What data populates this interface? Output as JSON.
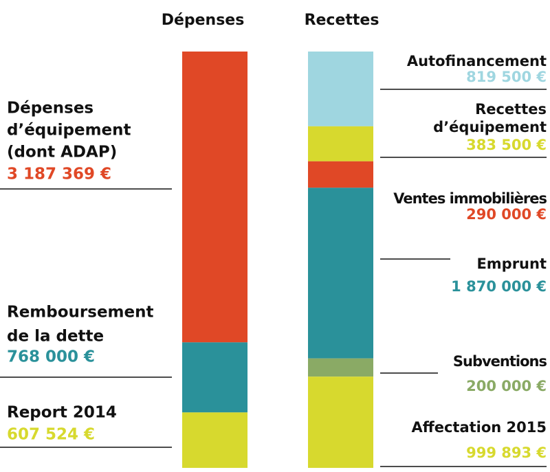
{
  "chart_data": {
    "type": "stacked-columns",
    "columns": [
      {
        "name": "Dépenses",
        "segments": [
          {
            "label": [
              "Dépenses",
              "d’équipement",
              "(dont ADAP)"
            ],
            "value": 3187369,
            "value_label": "3 187 369 €",
            "color": "#e04826"
          },
          {
            "label": [
              "Remboursement",
              "de la dette"
            ],
            "value": 768000,
            "value_label": "768 000 €",
            "color": "#2a919a"
          },
          {
            "label": [
              "Report 2014"
            ],
            "value": 607524,
            "value_label": "607 524 €",
            "color": "#d7d92e"
          }
        ]
      },
      {
        "name": "Recettes",
        "segments": [
          {
            "label": [
              "Autofinancement"
            ],
            "value": 819500,
            "value_label": "819 500 €",
            "color": "#9fd6e0"
          },
          {
            "label": [
              "Recettes",
              "d’équipement"
            ],
            "value": 383500,
            "value_label": "383 500 €",
            "color": "#d7d92e"
          },
          {
            "label": [
              "Ventes immobilières"
            ],
            "value": 290000,
            "value_label": "290 000 €",
            "color": "#e04826"
          },
          {
            "label": [
              "Emprunt"
            ],
            "value": 1870000,
            "value_label": "1 870 000 €",
            "color": "#2a919a"
          },
          {
            "label": [
              "Subventions"
            ],
            "value": 200000,
            "value_label": "200 000 €",
            "color": "#8aaa65"
          },
          {
            "label": [
              "Affectation 2015"
            ],
            "value": 999893,
            "value_label": "999 893 €",
            "color": "#d7d92e"
          }
        ]
      }
    ]
  }
}
